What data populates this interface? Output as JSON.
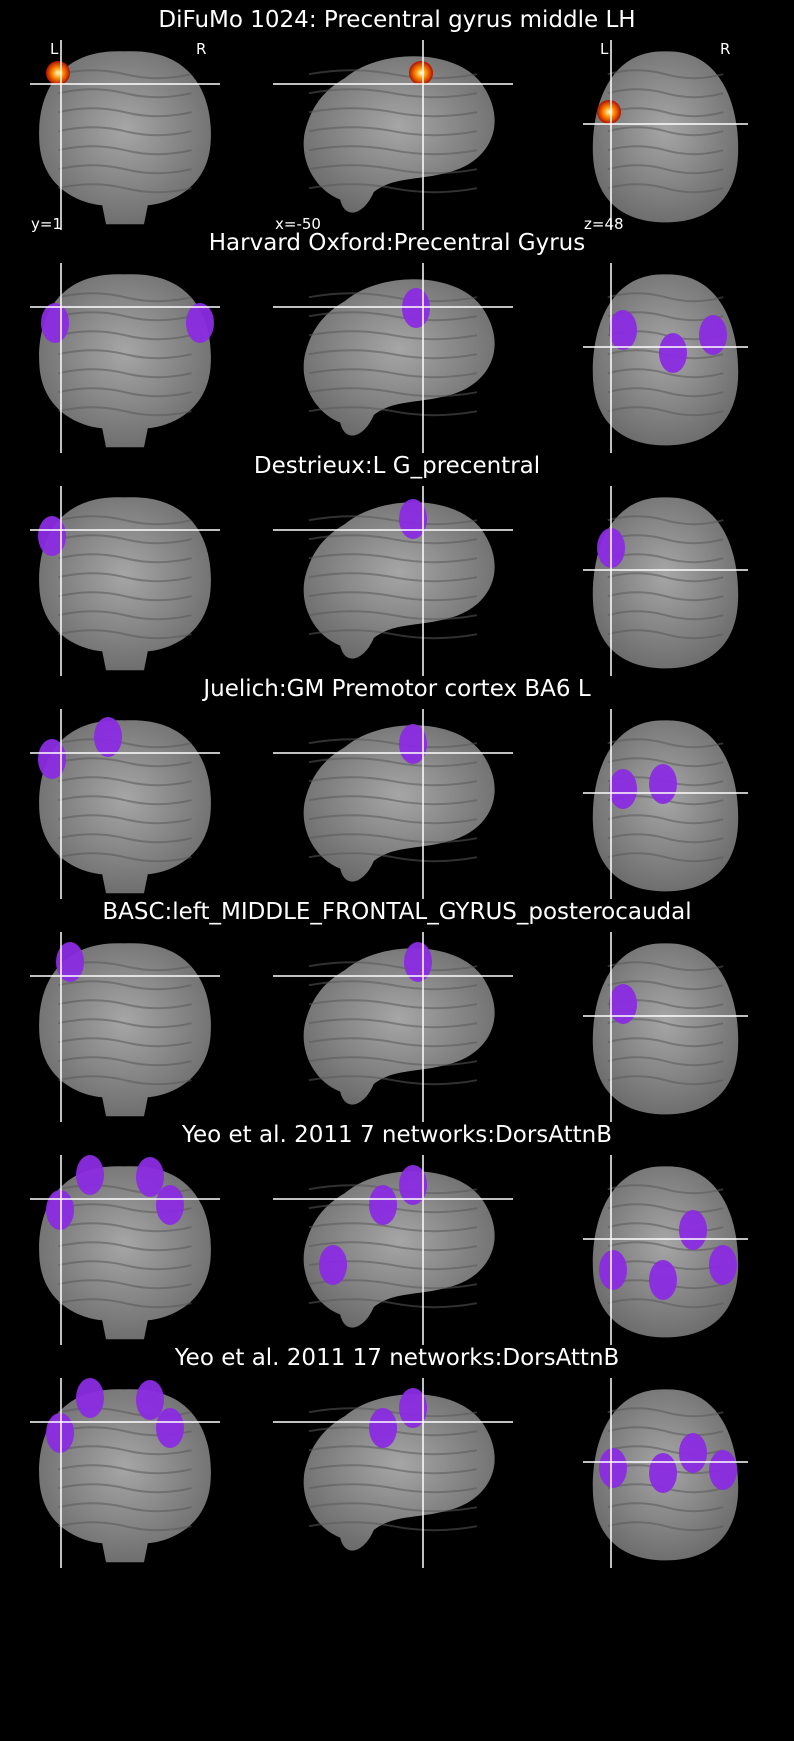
{
  "panels": [
    {
      "title": "DiFuMo 1024: Precentral gyrus middle LH",
      "kind": "heat",
      "overlay": {
        "coronal": [
          [
            28,
            33
          ]
        ],
        "sagittal": [
          [
            148,
            33
          ]
        ],
        "axial": [
          [
            26,
            72
          ]
        ]
      }
    },
    {
      "title": "Harvard Oxford:Precentral Gyrus",
      "kind": "atlas",
      "overlay": {
        "coronal": [
          [
            25,
            60
          ],
          [
            170,
            60
          ]
        ],
        "sagittal": [
          [
            143,
            45
          ]
        ],
        "axial": [
          [
            40,
            67
          ],
          [
            90,
            90
          ],
          [
            130,
            72
          ]
        ]
      }
    },
    {
      "title": "Destrieux:L G_precentral",
      "kind": "atlas",
      "overlay": {
        "coronal": [
          [
            22,
            50
          ]
        ],
        "sagittal": [
          [
            140,
            33
          ]
        ],
        "axial": [
          [
            28,
            62
          ]
        ]
      }
    },
    {
      "title": "Juelich:GM Premotor cortex BA6 L",
      "kind": "atlas",
      "overlay": {
        "coronal": [
          [
            22,
            50
          ],
          [
            78,
            28
          ]
        ],
        "sagittal": [
          [
            140,
            35
          ]
        ],
        "axial": [
          [
            40,
            80
          ],
          [
            80,
            75
          ]
        ]
      }
    },
    {
      "title": "BASC:left_MIDDLE_FRONTAL_GYRUS_posterocaudal",
      "kind": "atlas",
      "overlay": {
        "coronal": [
          [
            40,
            30
          ]
        ],
        "sagittal": [
          [
            145,
            30
          ]
        ],
        "axial": [
          [
            40,
            72
          ]
        ]
      }
    },
    {
      "title": "Yeo et al. 2011 7 networks:DorsAttnB",
      "kind": "atlas",
      "overlay": {
        "coronal": [
          [
            30,
            55
          ],
          [
            140,
            50
          ],
          [
            60,
            20
          ],
          [
            120,
            22
          ]
        ],
        "sagittal": [
          [
            60,
            110
          ],
          [
            110,
            50
          ],
          [
            140,
            30
          ]
        ],
        "axial": [
          [
            30,
            115
          ],
          [
            80,
            125
          ],
          [
            110,
            75
          ],
          [
            140,
            110
          ]
        ]
      }
    },
    {
      "title": "Yeo et al. 2011 17 networks:DorsAttnB",
      "kind": "atlas",
      "overlay": {
        "coronal": [
          [
            30,
            55
          ],
          [
            140,
            50
          ],
          [
            60,
            20
          ],
          [
            120,
            22
          ]
        ],
        "sagittal": [
          [
            110,
            50
          ],
          [
            140,
            30
          ]
        ],
        "axial": [
          [
            30,
            90
          ],
          [
            80,
            95
          ],
          [
            110,
            75
          ],
          [
            140,
            92
          ]
        ]
      }
    }
  ],
  "orientation": {
    "left": "L",
    "right": "R"
  },
  "coords": {
    "coronal": "y=1",
    "sagittal": "x=-50",
    "axial": "z=48"
  },
  "colors": {
    "atlas": "#8a2be2",
    "heat_core": "#ffffc0",
    "heat_mid": "#ff8c00",
    "heat_edge": "#b01000",
    "brain": "#8c8c8c",
    "crosshair": "#ffffff"
  }
}
